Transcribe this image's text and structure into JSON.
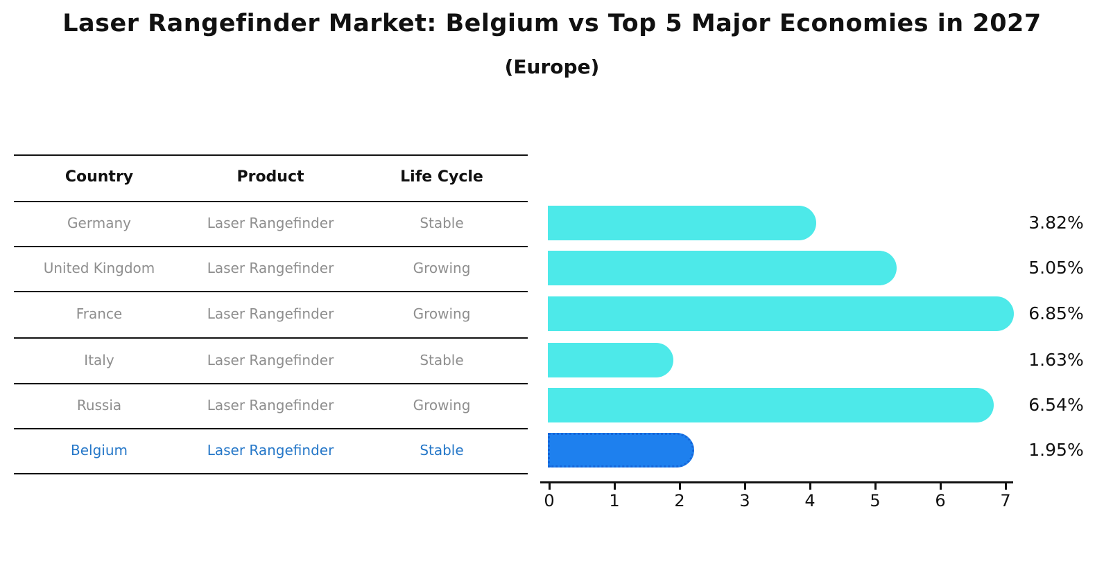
{
  "title": "Laser Rangefinder Market: Belgium vs Top 5 Major Economies in 2027",
  "subtitle": "(Europe)",
  "table": {
    "headers": [
      "Country",
      "Product",
      "Life Cycle"
    ],
    "rows": [
      {
        "country": "Germany",
        "product": "Laser Rangefinder",
        "life_cycle": "Stable",
        "highlighted": false
      },
      {
        "country": "United Kingdom",
        "product": "Laser Rangefinder",
        "life_cycle": "Growing",
        "highlighted": false
      },
      {
        "country": "France",
        "product": "Laser Rangefinder",
        "life_cycle": "Growing",
        "highlighted": false
      },
      {
        "country": "Italy",
        "product": "Laser Rangefinder",
        "life_cycle": "Stable",
        "highlighted": false
      },
      {
        "country": "Russia",
        "product": "Laser Rangefinder",
        "life_cycle": "Growing",
        "highlighted": false
      },
      {
        "country": "Belgium",
        "product": "Laser Rangefinder",
        "life_cycle": "Stable",
        "highlighted": true
      }
    ]
  },
  "chart_data": {
    "type": "bar",
    "orientation": "horizontal",
    "categories": [
      "Germany",
      "United Kingdom",
      "France",
      "Italy",
      "Russia",
      "Belgium"
    ],
    "values": [
      3.82,
      5.05,
      6.85,
      1.63,
      6.54,
      1.95
    ],
    "value_labels": [
      "3.82%",
      "5.05%",
      "6.85%",
      "1.63%",
      "6.54%",
      "1.95%"
    ],
    "x_ticks": [
      "0",
      "1",
      "2",
      "3",
      "4",
      "5",
      "6",
      "7"
    ],
    "xlim": [
      0,
      7
    ],
    "highlight_index": 5,
    "grid": false,
    "legend": false,
    "title": "Laser Rangefinder Market: Belgium vs Top 5 Major Economies in 2027",
    "subtitle": "(Europe)"
  },
  "colors": {
    "bar": "#4DE9E9",
    "highlight_bar": "#1E80EE",
    "highlight_border": "#1565D8",
    "row_text": "#8E8E8E",
    "highlight_text": "#2577C8",
    "header_text": "#111111",
    "axis": "#111111"
  }
}
